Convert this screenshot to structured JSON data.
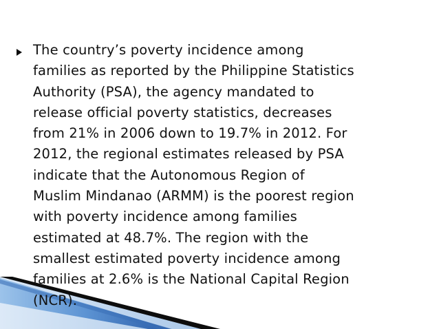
{
  "slide": {
    "bullet_icon": "triangle-right-icon",
    "accent_color": "#1f5fa8",
    "lines": [
      "The country’s poverty incidence among",
      "families as reported by the Philippine Statistics",
      "Authority (PSA), the agency mandated to",
      "release official poverty statistics, decreases",
      "from 21% in 2006 down to 19.7% in 2012. For",
      "2012, the regional estimates released by PSA",
      "indicate that the Autonomous Region of",
      "Muslim Mindanao (ARMM) is the poorest region",
      "with poverty incidence among families",
      "estimated at 48.7%. The region with the",
      "smallest estimated poverty incidence among",
      "families at 2.6% is the National Capital Region",
      "(NCR)."
    ]
  }
}
